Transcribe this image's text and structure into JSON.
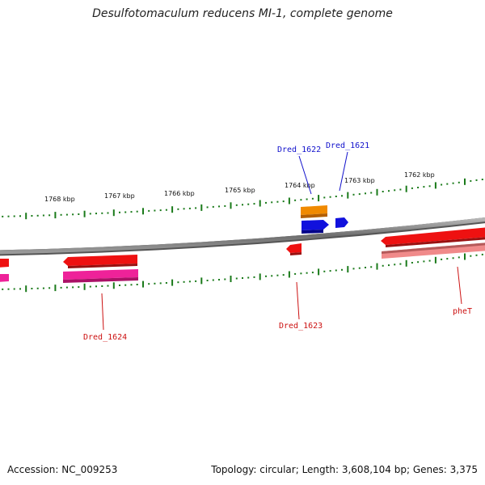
{
  "title": "Desulfotomaculum reducens MI-1, complete genome",
  "kbp_labels": [
    "1768 kbp",
    "1767 kbp",
    "1766 kbp",
    "1765 kbp",
    "1764 kbp",
    "1763 kbp",
    "1762 kbp"
  ],
  "genes": {
    "dred_1622": "Dred_1622",
    "dred_1621": "Dred_1621",
    "dred_1624": "Dred_1624",
    "dred_1623": "Dred_1623",
    "phet": "pheT"
  },
  "footer": {
    "accession_label": "Accession:",
    "accession": "NC_009253",
    "topology_label": "Topology:",
    "topology": "circular;",
    "length_label": "Length:",
    "length": "3,608,104 bp;",
    "genes_label": "Genes:",
    "genes": "3,375"
  },
  "colors": {
    "backbone": "#8a8a8a",
    "tick": "#1a7a1a",
    "cds_red": "#ee1111",
    "cds_pink": "#ee2299",
    "cds_salmon": "#f08a8a",
    "cds_orange": "#f08a00",
    "cds_blue": "#1111dd",
    "label_blue": "#1111cc",
    "label_red": "#cc1111"
  }
}
